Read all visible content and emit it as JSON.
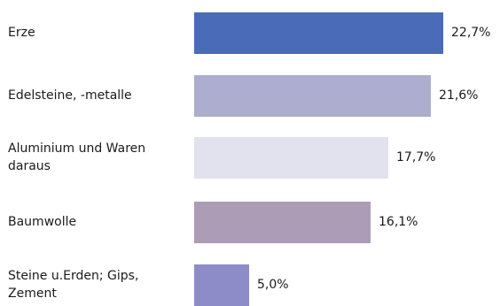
{
  "chart_data": {
    "type": "bar",
    "orientation": "horizontal",
    "categories": [
      "Erze",
      "Edelsteine, -metalle",
      "Aluminium und Waren daraus",
      "Baumwolle",
      "Steine u.Erden; Gips, Zement"
    ],
    "values": [
      22.7,
      21.6,
      17.7,
      16.1,
      5.0
    ],
    "value_labels": [
      "22,7%",
      "21,6%",
      "17,7%",
      "16,1%",
      "5,0%"
    ],
    "colors": [
      "#4a6cb8",
      "#adadd0",
      "#e2e2ee",
      "#ad9cb5",
      "#8e8cc8"
    ],
    "title": "",
    "xlabel": "",
    "ylabel": "",
    "xlim": [
      0,
      22.7
    ],
    "grid": false,
    "legend": "none"
  }
}
